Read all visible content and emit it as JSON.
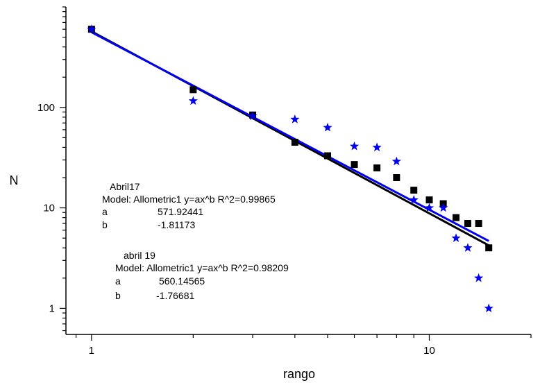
{
  "chart_data": {
    "type": "scatter",
    "xscale": "log",
    "yscale": "log",
    "xlim": [
      0.84,
      20
    ],
    "ylim": [
      0.55,
      1000
    ],
    "xlabel": "rango",
    "ylabel": "N",
    "xticks": [
      {
        "value": 1,
        "label": "1"
      },
      {
        "value": 10,
        "label": "10"
      }
    ],
    "yticks": [
      {
        "value": 1,
        "label": "1"
      },
      {
        "value": 10,
        "label": "10"
      },
      {
        "value": 100,
        "label": "100"
      }
    ],
    "grid": false,
    "legend": "none",
    "series": [
      {
        "marker": "square",
        "color": "#000000",
        "x": [
          1,
          2,
          3,
          4,
          5,
          6,
          7,
          8,
          9,
          10,
          11,
          12,
          13,
          14,
          15
        ],
        "y": [
          600,
          150,
          84,
          45,
          33,
          27,
          25,
          20,
          15,
          12,
          11,
          8,
          7,
          7,
          4
        ]
      },
      {
        "marker": "star",
        "color": "#0000ee",
        "x": [
          1,
          2,
          3,
          4,
          5,
          6,
          7,
          8,
          9,
          10,
          11,
          12,
          13,
          14,
          15
        ],
        "y": [
          600,
          116,
          82,
          76,
          63,
          41,
          40,
          29,
          12,
          10,
          10,
          5,
          4,
          2,
          1
        ]
      }
    ],
    "fits": [
      {
        "model": "allometric",
        "a": 571.92441,
        "b": -1.81173,
        "color": "#000000",
        "x_range": [
          1,
          15
        ]
      },
      {
        "model": "allometric",
        "a": 560.14565,
        "b": -1.76681,
        "color": "#0000ee",
        "x_range": [
          1,
          15
        ]
      }
    ],
    "annotations": [
      {
        "title": "Abril17",
        "model": "Model: Allometric1 y=ax^b R^2=0.99865",
        "a_label": "a",
        "a_value": "571.92441",
        "b_label": "b",
        "b_value": "-1.81173"
      },
      {
        "title": "abril 19",
        "model": "Model: Allometric1 y=ax^b R^2=0.98209",
        "a_label": "a",
        "a_value": "560.14565",
        "b_label": "b",
        "b_value": "-1.76681"
      }
    ]
  }
}
